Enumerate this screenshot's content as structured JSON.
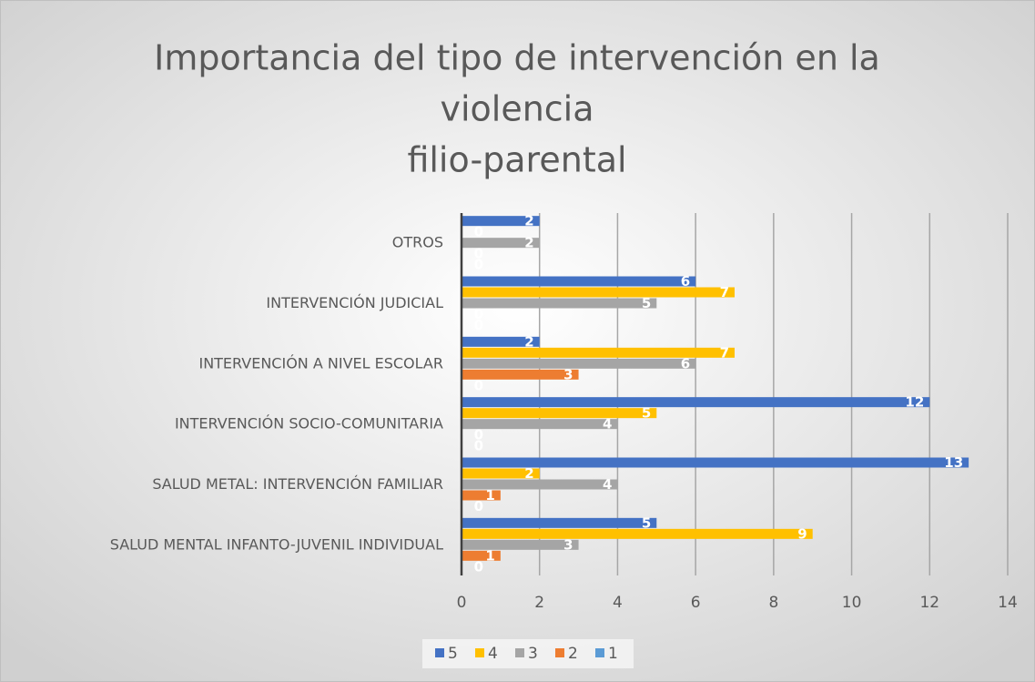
{
  "chart_data": {
    "type": "hbar",
    "title": [
      "Importancia del tipo de intervención en la",
      "violencia",
      "filio-parental"
    ],
    "categories": [
      "SALUD MENTAL INFANTO-JUVENIL INDIVIDUAL",
      "SALUD METAL: INTERVENCIÓN FAMILIAR",
      "INTERVENCIÓN SOCIO-COMUNITARIA",
      "INTERVENCIÓN A NIVEL ESCOLAR",
      "INTERVENCIÓN JUDICIAL",
      "OTROS"
    ],
    "series": [
      {
        "name": "5",
        "color": "#4472c4",
        "values": [
          5,
          13,
          12,
          2,
          6,
          2
        ]
      },
      {
        "name": "4",
        "color": "#ffc000",
        "values": [
          9,
          2,
          5,
          7,
          7,
          0
        ]
      },
      {
        "name": "3",
        "color": "#a5a5a5",
        "values": [
          3,
          4,
          4,
          6,
          5,
          2
        ]
      },
      {
        "name": "2",
        "color": "#ed7d31",
        "values": [
          1,
          1,
          0,
          3,
          0,
          0
        ]
      },
      {
        "name": "1",
        "color": "#5b9bd5",
        "values": [
          0,
          0,
          0,
          0,
          0,
          0
        ]
      }
    ],
    "xlim": [
      0,
      14
    ],
    "xticks": [
      0,
      2,
      4,
      6,
      8,
      10,
      12,
      14
    ],
    "grid": true,
    "legend": "bottom"
  }
}
